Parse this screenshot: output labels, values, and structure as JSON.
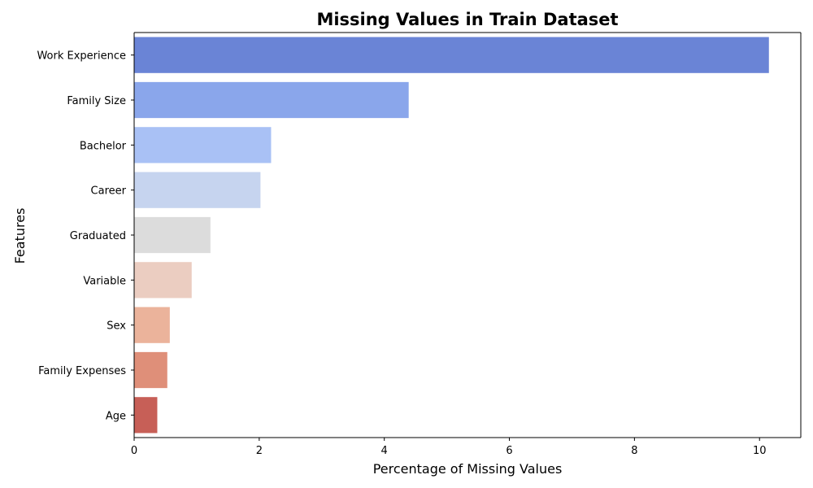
{
  "chart_data": {
    "type": "bar",
    "orientation": "horizontal",
    "title": "Missing Values in Train Dataset",
    "xlabel": "Percentage of Missing Values",
    "ylabel": "Features",
    "categories": [
      "Work Experience",
      "Family  Size",
      "Bachelor",
      "Career",
      "Graduated",
      "Variable",
      "Sex",
      "Family Expenses",
      "Age"
    ],
    "values": [
      10.15,
      4.39,
      2.19,
      2.02,
      1.22,
      0.92,
      0.57,
      0.53,
      0.37
    ],
    "colors": [
      "#6a84d6",
      "#8aa6eb",
      "#a9c1f5",
      "#c6d4ef",
      "#dcdcdc",
      "#ebcdc1",
      "#ebb39b",
      "#df8f79",
      "#c75f57"
    ],
    "xlim": [
      0,
      10.66
    ],
    "xticks": [
      0,
      2,
      4,
      6,
      8,
      10
    ],
    "grid": false,
    "legend": "none"
  }
}
